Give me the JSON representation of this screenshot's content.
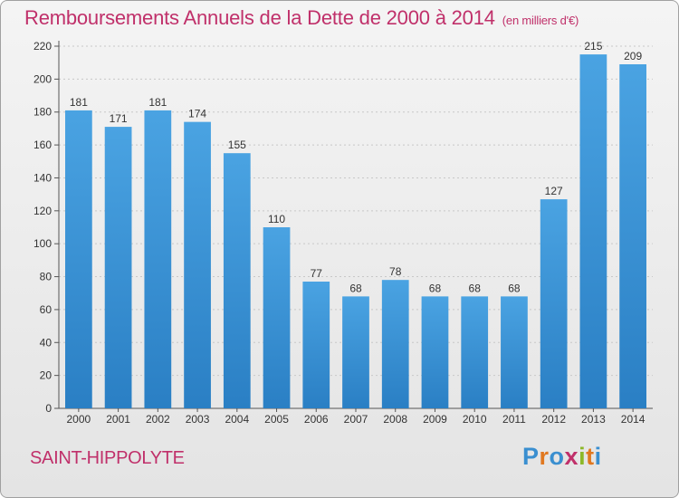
{
  "chart_data": {
    "type": "bar",
    "title": "Remboursements Annuels de la Dette de 2000 à 2014",
    "unit_note": "(en milliers d'€)",
    "categories": [
      "2000",
      "2001",
      "2002",
      "2003",
      "2004",
      "2005",
      "2006",
      "2007",
      "2008",
      "2009",
      "2010",
      "2011",
      "2012",
      "2013",
      "2014"
    ],
    "values": [
      181,
      171,
      181,
      174,
      155,
      110,
      77,
      68,
      78,
      68,
      68,
      68,
      127,
      215,
      209
    ],
    "yticks": [
      0,
      20,
      40,
      60,
      80,
      100,
      120,
      140,
      160,
      180,
      200,
      220
    ],
    "ylim": [
      0,
      220
    ],
    "xlabel": "",
    "ylabel": "",
    "grid": true,
    "legend": "none",
    "bar_color": "#4aa3e2",
    "bar_color_dark": "#2a7fc4"
  },
  "footer": {
    "commune": "SAINT-HIPPOLYTE",
    "logo_letters": [
      {
        "ch": "P",
        "color": "#3a8fd0"
      },
      {
        "ch": "r",
        "color": "#e07820"
      },
      {
        "ch": "o",
        "color": "#3a8fd0"
      },
      {
        "ch": "x",
        "color": "#c0306a"
      },
      {
        "ch": "i",
        "color": "#8cb828"
      },
      {
        "ch": "t",
        "color": "#e07820"
      },
      {
        "ch": "i",
        "color": "#3a8fd0"
      }
    ]
  }
}
